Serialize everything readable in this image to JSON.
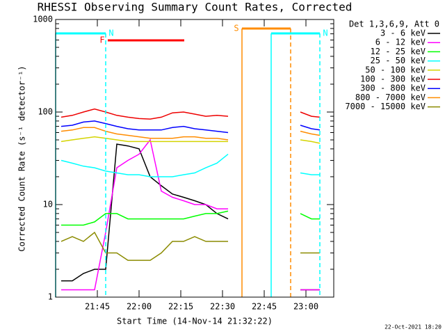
{
  "chart_data": {
    "type": "line",
    "title": "RHESSI Observing Summary Count Rates, Corrected",
    "x_label": "Start Time (14-Nov-14 21:32:22)",
    "y_label": "Corrected Count Rate (s⁻¹ detector⁻¹)",
    "log_y": true,
    "ylim": [
      1,
      1000
    ],
    "yticks": [
      1,
      10,
      100,
      1000
    ],
    "xlim": [
      1290,
      1390
    ],
    "xticks": [
      {
        "value": 1305,
        "label": "21:45"
      },
      {
        "value": 1320,
        "label": "22:00"
      },
      {
        "value": 1335,
        "label": "22:15"
      },
      {
        "value": 1350,
        "label": "22:30"
      },
      {
        "value": 1365,
        "label": "22:45"
      },
      {
        "value": 1380,
        "label": "23:00"
      }
    ],
    "legend_title": "Det 1,3,6,9, Att 0",
    "legend_position": "right",
    "footer": "22-Oct-2021 18:20",
    "x": [
      1292,
      1296,
      1300,
      1304,
      1308,
      1312,
      1316,
      1320,
      1324,
      1328,
      1332,
      1336,
      1340,
      1344,
      1348,
      1352,
      1365,
      1378,
      1382,
      1385
    ],
    "series": [
      {
        "name": "3 - 6 keV",
        "color": "#000000",
        "values": [
          1.5,
          1.5,
          1.8,
          2,
          2,
          45,
          43,
          40,
          20,
          16,
          13,
          12,
          11,
          10,
          8,
          7,
          null,
          1.2,
          1.2,
          1.2
        ]
      },
      {
        "name": "6 - 12 keV",
        "color": "#ff00ff",
        "values": [
          1.2,
          1.2,
          1.2,
          1.2,
          5,
          25,
          30,
          35,
          50,
          14,
          12,
          11,
          10,
          10,
          9,
          9,
          null,
          1.2,
          1.2,
          1.2
        ]
      },
      {
        "name": "12 - 25 keV",
        "color": "#00ff00",
        "values": [
          6,
          6,
          6,
          6.5,
          8,
          8,
          7,
          7,
          7,
          7,
          7,
          7,
          7.5,
          8,
          8,
          8.5,
          null,
          8,
          7,
          7
        ]
      },
      {
        "name": "25 - 50 keV",
        "color": "#00ffff",
        "values": [
          30,
          28,
          26,
          25,
          23,
          22,
          21,
          21,
          20,
          20,
          20,
          21,
          22,
          25,
          28,
          35,
          null,
          22,
          21,
          21
        ]
      },
      {
        "name": "50 - 100 keV",
        "color": "#d4d400",
        "values": [
          48,
          50,
          52,
          54,
          52,
          50,
          48,
          48,
          48,
          48,
          48,
          48,
          48,
          48,
          48,
          48,
          null,
          50,
          48,
          46
        ]
      },
      {
        "name": "100 - 300 keV",
        "color": "#ee0000",
        "values": [
          88,
          92,
          100,
          108,
          100,
          92,
          88,
          85,
          84,
          88,
          98,
          100,
          95,
          90,
          92,
          90,
          null,
          100,
          90,
          88
        ]
      },
      {
        "name": "300 - 800 keV",
        "color": "#0000ff",
        "values": [
          70,
          72,
          78,
          80,
          75,
          70,
          66,
          64,
          64,
          64,
          68,
          70,
          66,
          64,
          62,
          60,
          null,
          72,
          66,
          64
        ]
      },
      {
        "name": "800 - 7000 keV",
        "color": "#ff8c00",
        "values": [
          62,
          64,
          68,
          68,
          62,
          58,
          56,
          54,
          52,
          52,
          52,
          54,
          54,
          52,
          52,
          50,
          null,
          62,
          58,
          56
        ]
      },
      {
        "name": "7000 - 15000 keV",
        "color": "#8b8b00",
        "values": [
          4,
          4.5,
          4,
          5,
          3,
          3,
          2.5,
          2.5,
          2.5,
          3,
          4,
          4,
          4.5,
          4,
          4,
          4,
          null,
          3,
          3,
          3
        ]
      }
    ],
    "flags": [
      {
        "label": "N",
        "color": "#00ffff",
        "start": 1290,
        "end": 1308,
        "boundaries": true
      },
      {
        "label": "F",
        "color": "#ff0000",
        "start": 1308.75,
        "end": 1336.25,
        "boundaries": false
      },
      {
        "label": "S",
        "color": "#ff8c00",
        "start": 1357,
        "end": 1374.5,
        "boundaries": true
      },
      {
        "label": "N",
        "color": "#00ffff",
        "start": 1367.5,
        "end": 1385,
        "boundaries": true
      }
    ]
  }
}
